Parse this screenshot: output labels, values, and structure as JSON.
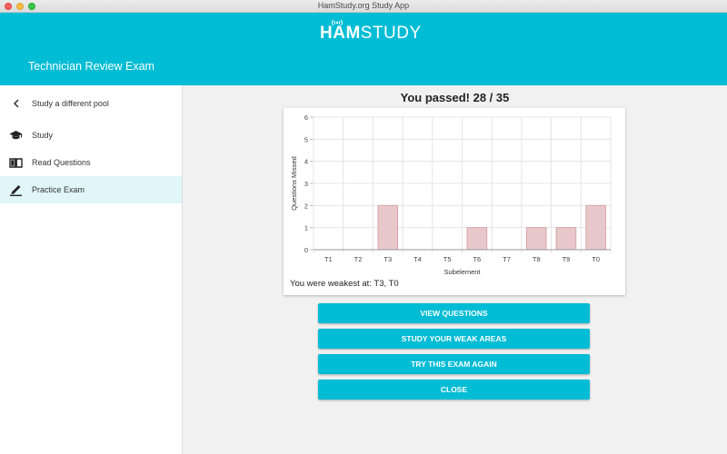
{
  "window": {
    "title": "HamStudy.org Study App"
  },
  "header": {
    "logo_bold": "HAM",
    "logo_light": "STUDY",
    "app_title": "Technician Review Exam"
  },
  "sidebar": {
    "items": [
      {
        "label": "Study a different pool",
        "icon": "chevron-left-icon"
      },
      {
        "label": "Study",
        "icon": "graduation-cap-icon"
      },
      {
        "label": "Read Questions",
        "icon": "book-open-icon"
      },
      {
        "label": "Practice Exam",
        "icon": "pencil-icon",
        "active": true
      }
    ]
  },
  "main": {
    "result": "You passed! 28 / 35",
    "weakest": "You were weakest at: T3, T0",
    "buttons": [
      "VIEW QUESTIONS",
      "STUDY YOUR WEAK AREAS",
      "TRY THIS EXAM AGAIN",
      "CLOSE"
    ]
  },
  "colors": {
    "accent": "#00bcd4",
    "bar_fill": "#e8c8ca",
    "bar_stroke": "#d9a5a9"
  },
  "chart_data": {
    "type": "bar",
    "categories": [
      "T1",
      "T2",
      "T3",
      "T4",
      "T5",
      "T6",
      "T7",
      "T8",
      "T9",
      "T0"
    ],
    "values": [
      0,
      0,
      2,
      0,
      0,
      1,
      0,
      1,
      1,
      2
    ],
    "xlabel": "Subelement",
    "ylabel": "Questions Missed",
    "ylim": [
      0,
      6
    ],
    "yticks": [
      0,
      1,
      2,
      3,
      4,
      5,
      6
    ],
    "grid": true
  }
}
